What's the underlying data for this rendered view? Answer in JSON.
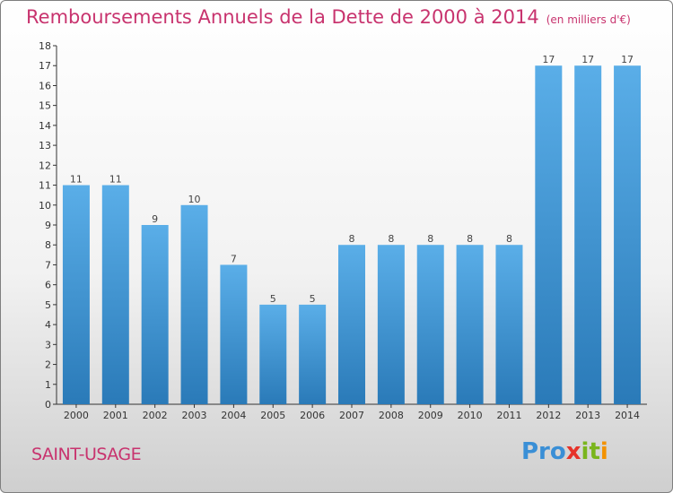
{
  "title": "Remboursements Annuels de la Dette de 2000 à 2014",
  "unit_note": "(en milliers d'€)",
  "commune": "SAINT-USAGE",
  "logo": [
    "Pro",
    "x",
    "it",
    "i"
  ],
  "colors": {
    "title": "#c8336e",
    "bar_top": "#5aaee8",
    "bar_bottom": "#2a7ab8"
  },
  "chart_data": {
    "type": "bar",
    "categories": [
      "2000",
      "2001",
      "2002",
      "2003",
      "2004",
      "2005",
      "2006",
      "2007",
      "2008",
      "2009",
      "2010",
      "2011",
      "2012",
      "2013",
      "2014"
    ],
    "values": [
      11,
      11,
      9,
      10,
      7,
      5,
      5,
      8,
      8,
      8,
      8,
      8,
      17,
      17,
      17
    ],
    "title": "Remboursements Annuels de la Dette de 2000 à 2014",
    "xlabel": "",
    "ylabel": "",
    "ylim": [
      0,
      18
    ],
    "yticks": [
      0,
      1,
      2,
      3,
      4,
      5,
      6,
      7,
      8,
      9,
      10,
      11,
      12,
      13,
      14,
      15,
      16,
      17,
      18
    ],
    "grid": false,
    "data_labels": true
  }
}
